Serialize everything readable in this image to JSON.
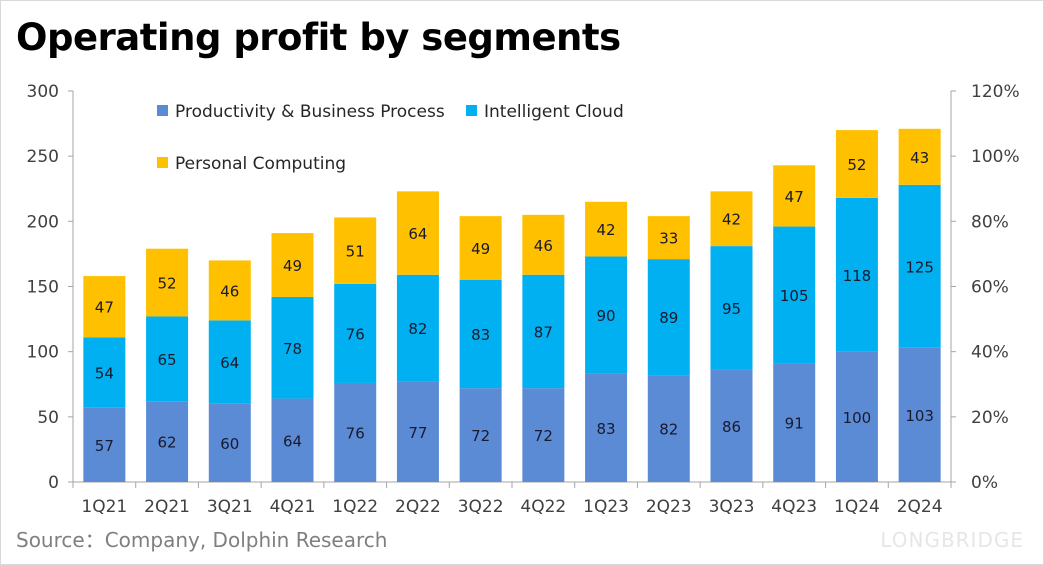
{
  "title": "Operating profit by segments",
  "source": "Source：Company, Dolphin Research",
  "watermark": "LONGBRIDGE",
  "chart_data": {
    "type": "bar",
    "stacked": true,
    "title": "Operating profit by segments",
    "categories": [
      "1Q21",
      "2Q21",
      "3Q21",
      "4Q21",
      "1Q22",
      "2Q22",
      "3Q22",
      "4Q22",
      "1Q23",
      "2Q23",
      "3Q23",
      "4Q23",
      "1Q24",
      "2Q24"
    ],
    "series": [
      {
        "name": "Productivity & Business Process",
        "color": "#5B8BD4",
        "values": [
          57,
          62,
          60,
          64,
          76,
          77,
          72,
          72,
          83,
          82,
          86,
          91,
          100,
          103
        ]
      },
      {
        "name": "Intelligent Cloud",
        "color": "#00B0F0",
        "values": [
          54,
          65,
          64,
          78,
          76,
          82,
          83,
          87,
          90,
          89,
          95,
          105,
          118,
          125
        ]
      },
      {
        "name": "Personal Computing",
        "color": "#FFC000",
        "values": [
          47,
          52,
          46,
          49,
          51,
          64,
          49,
          46,
          42,
          33,
          42,
          47,
          52,
          43
        ]
      }
    ],
    "ylim": [
      0,
      300
    ],
    "yticks": [
      "0",
      "50",
      "100",
      "150",
      "200",
      "250",
      "300"
    ],
    "y2lim": [
      0,
      1.2
    ],
    "y2ticks": [
      "0%",
      "20%",
      "40%",
      "60%",
      "80%",
      "100%",
      "120%"
    ],
    "grid": false,
    "legend": "top-left",
    "xlabel": "",
    "ylabel": ""
  }
}
